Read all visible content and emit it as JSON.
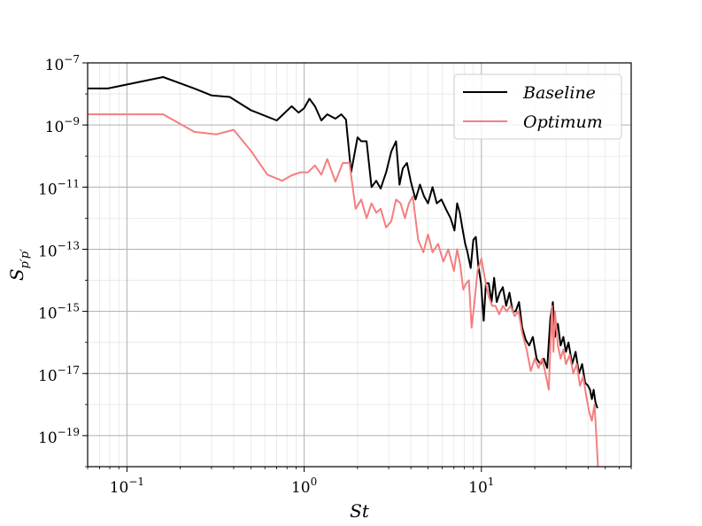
{
  "chart_data": {
    "type": "line",
    "title": "",
    "xlabel": "St",
    "ylabel": "S_{p'p'}",
    "x_scale": "log",
    "y_scale": "log",
    "xlim": [
      0.06,
      70
    ],
    "ylim": [
      1e-20,
      1e-07
    ],
    "x_ticks": [
      {
        "value": 0.1,
        "base": "10",
        "exp": "−1"
      },
      {
        "value": 1,
        "base": "10",
        "exp": "0"
      },
      {
        "value": 10,
        "base": "10",
        "exp": "1"
      }
    ],
    "y_ticks": [
      {
        "value": 1e-07,
        "base": "10",
        "exp": "−7"
      },
      {
        "value": 1e-09,
        "base": "10",
        "exp": "−9"
      },
      {
        "value": 1e-11,
        "base": "10",
        "exp": "−11"
      },
      {
        "value": 1e-13,
        "base": "10",
        "exp": "−13"
      },
      {
        "value": 1e-15,
        "base": "10",
        "exp": "−15"
      },
      {
        "value": 1e-17,
        "base": "10",
        "exp": "−17"
      },
      {
        "value": 1e-19,
        "base": "10",
        "exp": "−19"
      }
    ],
    "grid": true,
    "legend_position": "top-right",
    "series": [
      {
        "name": "Baseline",
        "color": "#000000",
        "x": [
          0.06,
          0.078,
          0.16,
          0.24,
          0.3,
          0.38,
          0.5,
          0.7,
          0.85,
          0.93,
          1.0,
          1.07,
          1.15,
          1.25,
          1.35,
          1.5,
          1.62,
          1.72,
          1.84,
          1.9,
          2.0,
          2.1,
          2.25,
          2.4,
          2.55,
          2.7,
          2.9,
          3.1,
          3.3,
          3.45,
          3.6,
          3.8,
          4.0,
          4.25,
          4.5,
          4.75,
          5.0,
          5.3,
          5.6,
          5.95,
          6.3,
          6.7,
          7.05,
          7.3,
          7.55,
          7.8,
          8.1,
          8.35,
          8.7,
          9.0,
          9.3,
          9.6,
          9.95,
          10.3,
          10.6,
          11.0,
          11.4,
          11.8,
          12.2,
          12.7,
          13.2,
          13.8,
          14.4,
          15.0,
          15.6,
          16.3,
          17.0,
          17.8,
          18.6,
          19.5,
          20.5,
          21.5,
          22.5,
          23.5,
          24.5,
          25.3,
          26.0,
          27.0,
          28.0,
          29.0,
          30.0,
          31.0,
          32.5,
          34.0,
          35.5,
          37.0,
          38.5,
          40.0,
          41.0,
          42.0,
          43.0,
          44.0,
          45.0
        ],
        "y": [
          1.5e-08,
          1.5e-08,
          3.5e-08,
          1.5e-08,
          9e-09,
          8e-09,
          3e-09,
          1.4e-09,
          4e-09,
          2.5e-09,
          3.5e-09,
          7e-09,
          4e-09,
          1.4e-09,
          2.2e-09,
          1.6e-09,
          2.2e-09,
          1.5e-09,
          3e-11,
          8e-11,
          4e-10,
          3e-10,
          3e-10,
          1e-11,
          1.6e-11,
          9e-12,
          3e-11,
          1.4e-10,
          3e-10,
          1.2e-11,
          4e-11,
          6e-11,
          1.5e-11,
          4e-12,
          1.2e-11,
          5e-12,
          3e-12,
          1e-11,
          3e-12,
          4e-12,
          2e-12,
          1e-12,
          4e-13,
          3e-12,
          1.5e-12,
          5e-13,
          1.5e-13,
          8e-14,
          2.5e-14,
          2e-13,
          2.5e-13,
          3e-14,
          8e-15,
          5e-16,
          8e-15,
          8e-15,
          2e-15,
          1.2e-14,
          2e-15,
          4e-15,
          6e-15,
          1.5e-15,
          4e-15,
          1e-15,
          1e-15,
          2e-15,
          3e-16,
          1.2e-16,
          8e-17,
          1.5e-16,
          3e-17,
          2e-17,
          3e-17,
          1.5e-17,
          6e-16,
          2e-15,
          1.5e-16,
          4e-16,
          8e-17,
          1.5e-16,
          5e-17,
          1e-16,
          2e-17,
          5e-17,
          1e-17,
          2e-17,
          5e-18,
          4e-18,
          3e-18,
          1.5e-18,
          3e-18,
          1.2e-18,
          8e-19
        ]
      },
      {
        "name": "Optimum",
        "color": "#f47f7f",
        "x": [
          0.06,
          0.078,
          0.16,
          0.24,
          0.32,
          0.4,
          0.5,
          0.62,
          0.75,
          0.85,
          0.95,
          1.05,
          1.15,
          1.25,
          1.35,
          1.5,
          1.65,
          1.8,
          1.95,
          2.1,
          2.25,
          2.4,
          2.55,
          2.7,
          2.9,
          3.1,
          3.3,
          3.5,
          3.7,
          3.9,
          4.1,
          4.4,
          4.7,
          5.0,
          5.3,
          5.7,
          6.1,
          6.5,
          7.0,
          7.3,
          7.6,
          7.9,
          8.2,
          8.5,
          8.8,
          9.1,
          9.5,
          10.0,
          10.5,
          11.0,
          11.5,
          12.0,
          12.6,
          13.2,
          13.9,
          14.6,
          15.4,
          16.2,
          17.0,
          18.0,
          19.0,
          20.0,
          21.0,
          22.0,
          23.0,
          24.0,
          25.0,
          25.5,
          26.0,
          27.0,
          28.0,
          29.0,
          30.0,
          31.5,
          33.0,
          34.5,
          36.0,
          37.5,
          39.0,
          40.5,
          42.0,
          43.5,
          44.5,
          45.5,
          46.0
        ],
        "y": [
          2.2e-09,
          2.2e-09,
          2.2e-09,
          6e-10,
          5e-10,
          7e-10,
          1.5e-10,
          2.5e-11,
          1.6e-11,
          2.4e-11,
          3e-11,
          3e-11,
          5e-11,
          2.5e-11,
          8e-11,
          1.5e-11,
          6e-11,
          6e-11,
          2e-12,
          4e-12,
          1e-12,
          3e-12,
          1.5e-12,
          2e-12,
          5e-13,
          8e-13,
          4e-12,
          3e-12,
          1e-12,
          3e-12,
          5e-12,
          2e-13,
          8e-14,
          3e-13,
          8e-14,
          1.5e-13,
          4e-14,
          1e-13,
          2e-14,
          1e-13,
          3e-14,
          5e-15,
          8e-15,
          1e-14,
          3e-16,
          1.5e-15,
          2e-14,
          5e-14,
          1e-14,
          3e-15,
          1.5e-15,
          1.5e-15,
          8e-16,
          1.5e-15,
          1e-15,
          1.5e-15,
          7e-16,
          1e-15,
          2e-16,
          6e-17,
          1.2e-17,
          3e-17,
          1.5e-17,
          3e-17,
          1e-17,
          3e-18,
          1.5e-15,
          5e-17,
          1e-15,
          8e-17,
          3e-17,
          6e-17,
          2e-17,
          4e-17,
          1e-17,
          2e-17,
          4e-18,
          8e-18,
          2e-18,
          6e-19,
          3e-19,
          1e-18,
          1e-19,
          1e-20,
          3e-21
        ]
      }
    ]
  }
}
